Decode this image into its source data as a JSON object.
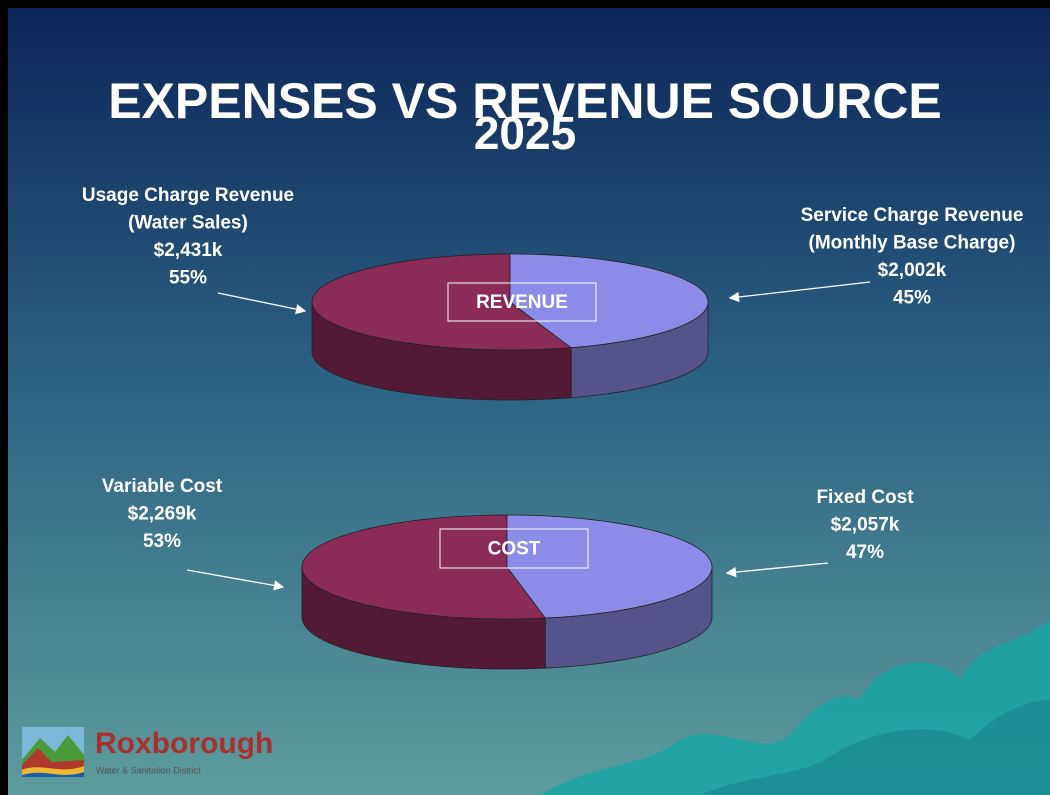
{
  "title_lines": [
    "EXPENSES VS REVENUE SOURCE",
    "2025"
  ],
  "logo": {
    "name": "Roxborough",
    "subtitle": "Water & Sanitation District"
  },
  "chart_data": [
    {
      "type": "pie",
      "center_label": "REVENUE",
      "categories": [
        [
          "Usage Charge Revenue",
          "(Water Sales)"
        ],
        [
          "Service Charge Revenue",
          "(Monthly Base Charge)"
        ]
      ],
      "amount_labels": [
        "$2,431k",
        "$2,002k"
      ],
      "values": [
        55,
        45
      ],
      "value_labels": [
        "55%",
        "45%"
      ],
      "colors": [
        "#8b2b58",
        "#8c8ce8"
      ]
    },
    {
      "type": "pie",
      "center_label": "COST",
      "categories": [
        [
          "Variable Cost"
        ],
        [
          "Fixed Cost"
        ]
      ],
      "amount_labels": [
        "$2,269k",
        "$2,057k"
      ],
      "values": [
        53,
        47
      ],
      "value_labels": [
        "53%",
        "47%"
      ],
      "colors": [
        "#8b2b58",
        "#8c8ce8"
      ]
    }
  ]
}
